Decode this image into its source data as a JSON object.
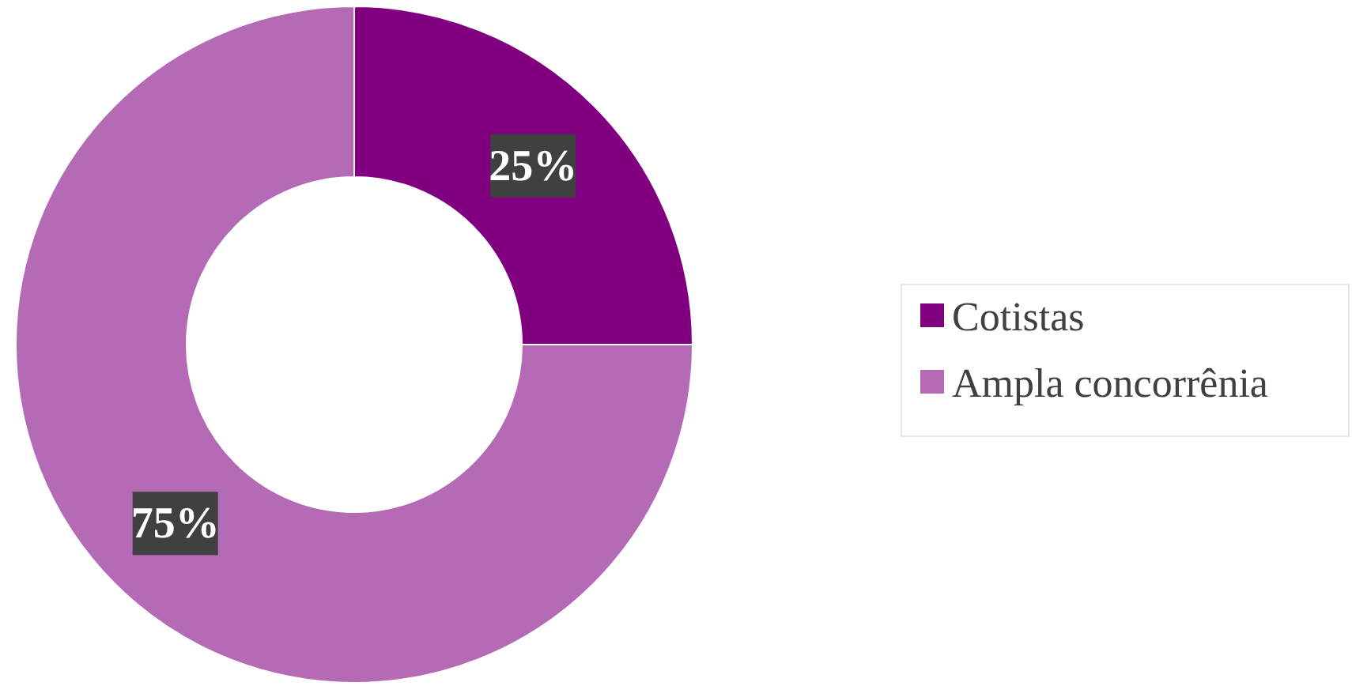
{
  "chart_data": {
    "type": "donut",
    "categories": [
      "Cotistas",
      "Ampla concorrênia"
    ],
    "values": [
      25,
      75
    ],
    "colors": [
      "#800080",
      "#b46ab4"
    ],
    "value_labels": [
      "25%",
      "75%"
    ],
    "legend": "right"
  }
}
